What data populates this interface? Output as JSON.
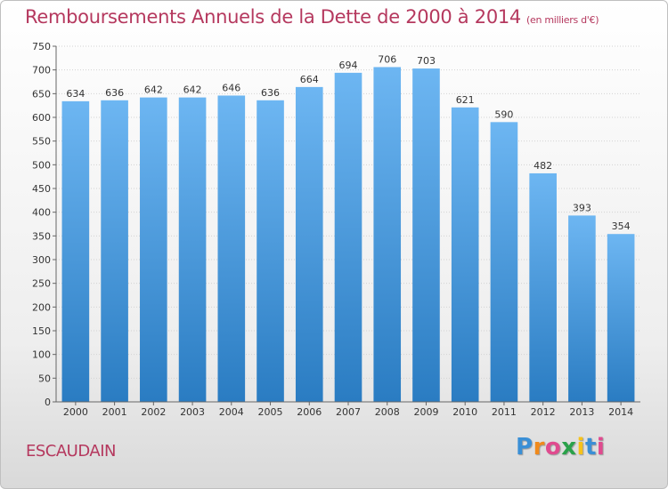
{
  "title": "Remboursements Annuels de la Dette de 2000 à 2014",
  "unit": "(en milliers d'€)",
  "city": "ESCAUDAIN",
  "brand": "Proxiti",
  "colors": {
    "title": "#b5385e",
    "bar_top": "#6db6f2",
    "bar_bottom": "#2a7cc2"
  },
  "chart_data": {
    "type": "bar",
    "categories": [
      "2000",
      "2001",
      "2002",
      "2003",
      "2004",
      "2005",
      "2006",
      "2007",
      "2008",
      "2009",
      "2010",
      "2011",
      "2012",
      "2013",
      "2014"
    ],
    "values": [
      634,
      636,
      642,
      642,
      646,
      636,
      664,
      694,
      706,
      703,
      621,
      590,
      482,
      393,
      354
    ],
    "title": "Remboursements Annuels de la Dette de 2000 à 2014",
    "xlabel": "",
    "ylabel": "",
    "ylim": [
      0,
      750
    ],
    "yticks": [
      0,
      50,
      100,
      150,
      200,
      250,
      300,
      350,
      400,
      450,
      500,
      550,
      600,
      650,
      700,
      750
    ],
    "grid": true,
    "legend": "none"
  }
}
